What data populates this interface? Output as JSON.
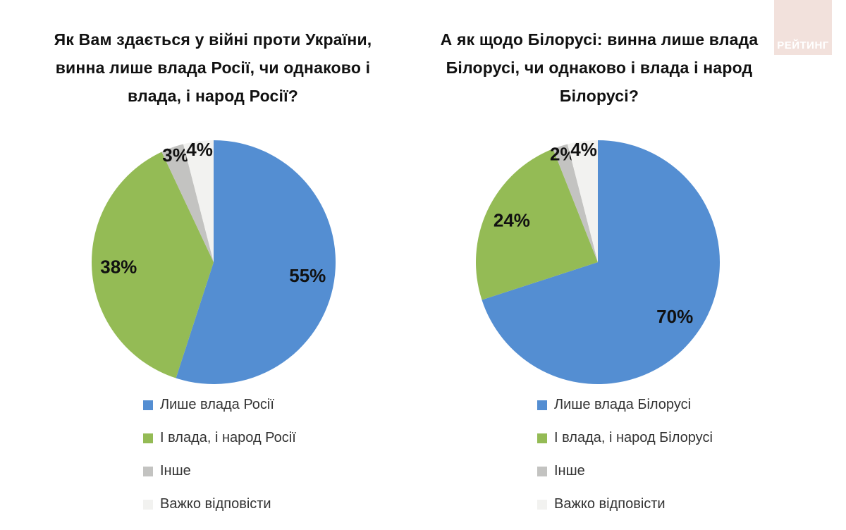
{
  "logo": {
    "text": "РЕЙТИНГ",
    "bg_color": "#f2e1dc",
    "text_color": "#ffffff"
  },
  "chart_data": [
    {
      "type": "pie",
      "title": "Як Вам здається у війні проти України, винна лише влада Росії, чи однаково і влада, і народ Росії?",
      "title_lines": [
        "Як Вам здається у війні проти України,",
        "винна лише влада Росії, чи однаково і",
        "влада, і народ Росії?"
      ],
      "categories": [
        "Лише влада Росії",
        "І влада, і народ Росії",
        "Інше",
        "Важко відповісти"
      ],
      "values": [
        55,
        38,
        3,
        4
      ],
      "data_labels": [
        "55%",
        "38%",
        "3%",
        "4%"
      ],
      "colors": [
        "#548ed2",
        "#94bb55",
        "#c3c3c1",
        "#f2f2f0"
      ],
      "label_color": "#111111",
      "start_angle": 0,
      "direction": "clockwise",
      "legend_position": "bottom-left"
    },
    {
      "type": "pie",
      "title": "А як щодо Білорусі: винна лише влада Білорусі, чи однаково і влада і народ Білорусі?",
      "title_lines": [
        "А як щодо Білорусі: винна лише влада",
        "Білорусі, чи однаково і влада і народ",
        "Білорусі?"
      ],
      "categories": [
        "Лише влада Білорусі",
        "І влада, і народ Білорусі",
        "Інше",
        "Важко відповісти"
      ],
      "values": [
        70,
        24,
        2,
        4
      ],
      "data_labels": [
        "70%",
        "24%",
        "2%",
        "4%"
      ],
      "colors": [
        "#548ed2",
        "#94bb55",
        "#c3c3c1",
        "#f2f2f0"
      ],
      "label_color": "#111111",
      "start_angle": 0,
      "direction": "clockwise",
      "legend_position": "bottom-left"
    }
  ]
}
